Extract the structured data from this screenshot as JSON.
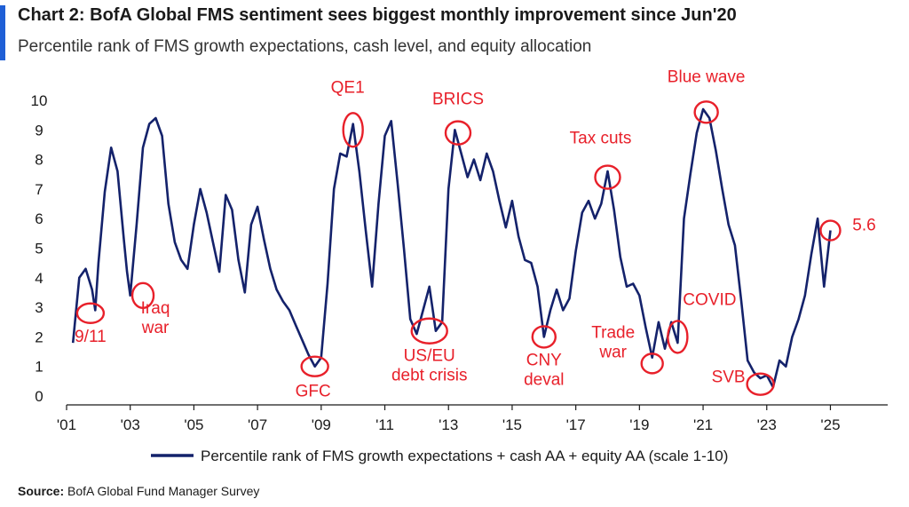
{
  "title": "Chart 2: BofA Global FMS sentiment sees biggest monthly improvement since Jun'20",
  "subtitle": "Percentile rank of FMS growth expectations, cash level, and equity allocation",
  "source_label": "Source:",
  "source_text": "BofA Global Fund Manager Survey",
  "colors": {
    "line": "#14226b",
    "annotation": "#e8202a",
    "accent": "#1f5fd6",
    "axis": "#1a1a1a"
  },
  "chart_data": {
    "type": "line",
    "title": "Chart 2: BofA Global FMS sentiment sees biggest monthly improvement since Jun'20",
    "xlabel": "",
    "ylabel": "",
    "xlim": [
      2001.0,
      2026.8
    ],
    "ylim": [
      0,
      10
    ],
    "y_ticks": [
      0,
      1,
      2,
      3,
      4,
      5,
      6,
      7,
      8,
      9,
      10
    ],
    "x_ticks": [
      {
        "year": 2001,
        "label": "'01"
      },
      {
        "year": 2003,
        "label": "'03"
      },
      {
        "year": 2005,
        "label": "'05"
      },
      {
        "year": 2007,
        "label": "'07"
      },
      {
        "year": 2009,
        "label": "'09"
      },
      {
        "year": 2011,
        "label": "'11"
      },
      {
        "year": 2013,
        "label": "'13"
      },
      {
        "year": 2015,
        "label": "'15"
      },
      {
        "year": 2017,
        "label": "'17"
      },
      {
        "year": 2019,
        "label": "'19"
      },
      {
        "year": 2021,
        "label": "'21"
      },
      {
        "year": 2023,
        "label": "'23"
      },
      {
        "year": 2025,
        "label": "'25"
      }
    ],
    "grid": false,
    "legend_position": "bottom",
    "series": [
      {
        "name": "Percentile rank of FMS growth expectations + cash AA + equity AA (scale 1-10)",
        "x": [
          2001.2,
          2001.4,
          2001.6,
          2001.8,
          2001.9,
          2002.0,
          2002.2,
          2002.4,
          2002.6,
          2002.8,
          2002.9,
          2003.0,
          2003.2,
          2003.4,
          2003.6,
          2003.8,
          2004.0,
          2004.2,
          2004.4,
          2004.6,
          2004.8,
          2005.0,
          2005.2,
          2005.4,
          2005.6,
          2005.8,
          2006.0,
          2006.2,
          2006.4,
          2006.6,
          2006.8,
          2007.0,
          2007.2,
          2007.4,
          2007.6,
          2007.8,
          2008.0,
          2008.2,
          2008.4,
          2008.6,
          2008.8,
          2009.0,
          2009.2,
          2009.4,
          2009.6,
          2009.8,
          2010.0,
          2010.2,
          2010.4,
          2010.6,
          2010.8,
          2011.0,
          2011.2,
          2011.4,
          2011.6,
          2011.8,
          2012.0,
          2012.2,
          2012.4,
          2012.6,
          2012.8,
          2013.0,
          2013.2,
          2013.4,
          2013.6,
          2013.8,
          2014.0,
          2014.2,
          2014.4,
          2014.6,
          2014.8,
          2015.0,
          2015.2,
          2015.4,
          2015.6,
          2015.8,
          2016.0,
          2016.2,
          2016.4,
          2016.6,
          2016.8,
          2017.0,
          2017.2,
          2017.4,
          2017.6,
          2017.8,
          2018.0,
          2018.2,
          2018.4,
          2018.6,
          2018.8,
          2019.0,
          2019.2,
          2019.4,
          2019.6,
          2019.8,
          2020.0,
          2020.2,
          2020.4,
          2020.6,
          2020.8,
          2021.0,
          2021.2,
          2021.4,
          2021.6,
          2021.8,
          2022.0,
          2022.2,
          2022.4,
          2022.6,
          2022.8,
          2023.0,
          2023.2,
          2023.4,
          2023.6,
          2023.8,
          2024.0,
          2024.2,
          2024.4,
          2024.6,
          2024.8,
          2025.0
        ],
        "values": [
          1.8,
          4.0,
          4.3,
          3.6,
          2.9,
          4.5,
          6.9,
          8.4,
          7.6,
          5.3,
          4.2,
          3.4,
          5.8,
          8.4,
          9.2,
          9.4,
          8.8,
          6.5,
          5.2,
          4.6,
          4.3,
          5.8,
          7.0,
          6.2,
          5.2,
          4.2,
          6.8,
          6.3,
          4.6,
          3.5,
          5.8,
          6.4,
          5.3,
          4.3,
          3.6,
          3.2,
          2.9,
          2.4,
          1.9,
          1.4,
          1.0,
          1.3,
          3.8,
          7.0,
          8.2,
          8.1,
          9.2,
          7.6,
          5.6,
          3.7,
          6.5,
          8.8,
          9.3,
          7.2,
          5.0,
          2.6,
          2.1,
          2.9,
          3.7,
          2.2,
          2.5,
          7.0,
          9.0,
          8.2,
          7.4,
          8.0,
          7.3,
          8.2,
          7.6,
          6.6,
          5.7,
          6.6,
          5.4,
          4.6,
          4.5,
          3.7,
          2.0,
          2.9,
          3.6,
          2.9,
          3.3,
          4.9,
          6.2,
          6.6,
          6.0,
          6.5,
          7.6,
          6.3,
          4.7,
          3.7,
          3.8,
          3.4,
          2.3,
          1.3,
          2.5,
          1.6,
          2.5,
          1.8,
          6.0,
          7.5,
          8.9,
          9.7,
          9.4,
          8.3,
          7.0,
          5.8,
          5.1,
          3.2,
          1.2,
          0.8,
          0.6,
          0.7,
          0.3,
          1.2,
          1.0,
          2.0,
          2.6,
          3.4,
          4.8,
          6.0,
          3.7,
          5.6
        ]
      }
    ],
    "annotations": [
      {
        "label": "9/11",
        "x": 2001.75,
        "y": 2.8
      },
      {
        "label": "Iraq\nwar",
        "x": 2003.4,
        "y": 3.4
      },
      {
        "label": "GFC",
        "x": 2008.8,
        "y": 1.0
      },
      {
        "label": "QE1",
        "x": 2010.0,
        "y": 9.0
      },
      {
        "label": "US/EU\ndebt crisis",
        "x": 2012.4,
        "y": 2.2
      },
      {
        "label": "BRICS",
        "x": 2013.3,
        "y": 8.9
      },
      {
        "label": "CNY\ndeval",
        "x": 2016.0,
        "y": 2.0
      },
      {
        "label": "Tax cuts",
        "x": 2018.0,
        "y": 7.4
      },
      {
        "label": "Trade\nwar",
        "x": 2019.4,
        "y": 1.1
      },
      {
        "label": "COVID",
        "x": 2020.2,
        "y": 2.0
      },
      {
        "label": "Blue wave",
        "x": 2021.1,
        "y": 9.6
      },
      {
        "label": "SVB",
        "x": 2022.8,
        "y": 0.4
      },
      {
        "label": "5.6",
        "x": 2025.0,
        "y": 5.6
      }
    ]
  }
}
